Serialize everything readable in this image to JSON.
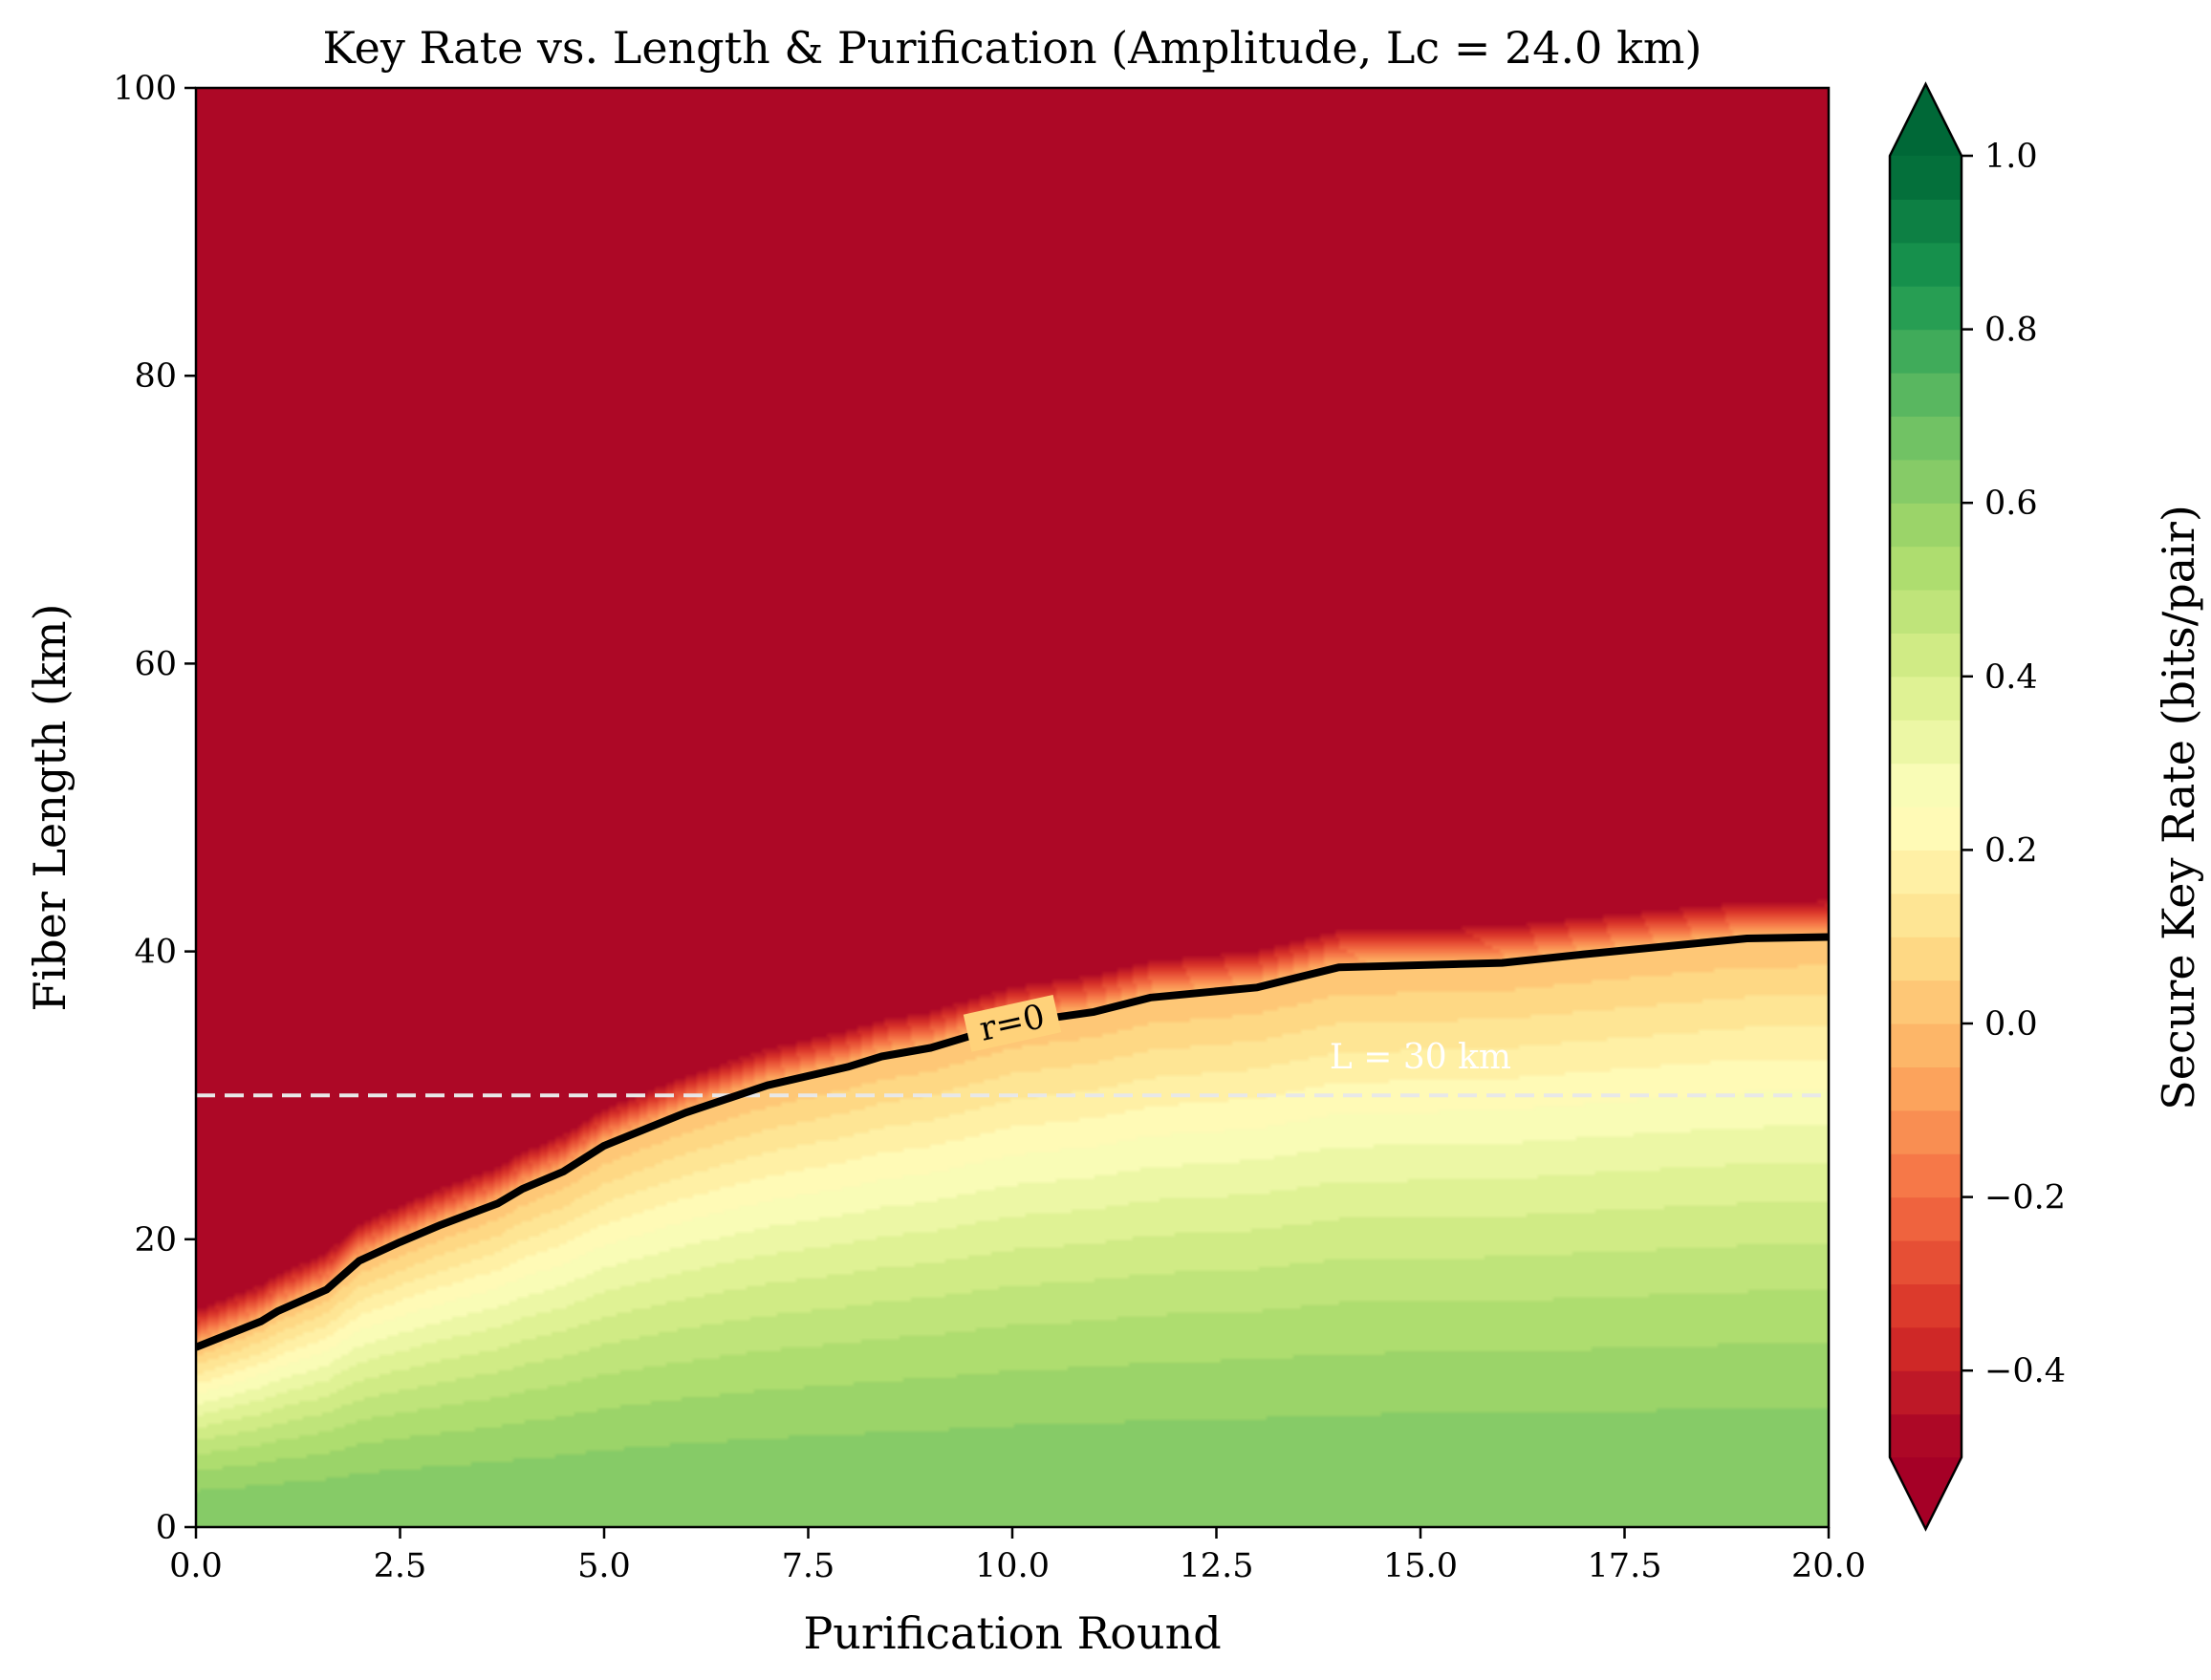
{
  "chart_data": {
    "type": "heatmap",
    "subtype": "filled-contour",
    "title": "Key Rate vs. Length & Purification (Amplitude, Lc = 24.0 km)",
    "xlabel": "Purification Round",
    "ylabel": "Fiber Length (km)",
    "xlim": [
      0,
      20
    ],
    "ylim": [
      0,
      100
    ],
    "xticks": [
      0,
      2.5,
      5,
      7.5,
      10,
      12.5,
      15,
      17.5,
      20
    ],
    "xtick_labels": [
      "0.0",
      "2.5",
      "5.0",
      "7.5",
      "10.0",
      "12.5",
      "15.0",
      "17.5",
      "20.0"
    ],
    "yticks": [
      0,
      20,
      40,
      60,
      80,
      100
    ],
    "ytick_labels": [
      "0",
      "20",
      "40",
      "60",
      "80",
      "100"
    ],
    "colorbar": {
      "label": "Secure Key Rate (bits/pair)",
      "range": [
        -0.5,
        1.0
      ],
      "levels": 30,
      "extend": "both",
      "colormap": "RdYlGn",
      "ticks": [
        -0.4,
        -0.2,
        0.0,
        0.2,
        0.4,
        0.6,
        0.8,
        1.0
      ],
      "tick_labels": [
        "−0.4",
        "−0.2",
        "0.0",
        "0.2",
        "0.4",
        "0.6",
        "0.8",
        "1.0"
      ]
    },
    "field": {
      "max_rate": 0.65,
      "min_rate": -0.5,
      "zero_contour_slope": 0.18
    },
    "zero_contour": {
      "label": "r=0",
      "label_x": 10.0,
      "x": [
        0,
        0.8,
        1,
        1.6,
        2,
        2.5,
        3,
        3.7,
        4,
        4.5,
        5,
        6,
        7,
        8,
        8.4,
        9,
        10,
        11,
        11.7,
        13,
        14,
        16,
        17,
        19,
        20
      ],
      "y": [
        12.5,
        14.3,
        15.0,
        16.5,
        18.5,
        19.8,
        21.0,
        22.5,
        23.5,
        24.7,
        26.5,
        28.8,
        30.7,
        32.0,
        32.7,
        33.3,
        35.0,
        35.8,
        36.8,
        37.5,
        38.9,
        39.2,
        39.8,
        40.9,
        41.0
      ]
    },
    "reference_line": {
      "y": 30,
      "label": "L = 30 km",
      "label_x": 15.0,
      "style": "dashed",
      "color": "#e8e8e8"
    },
    "colors": {
      "low": "#a50026",
      "mid": "#ffffbf",
      "high": "#006837"
    }
  }
}
